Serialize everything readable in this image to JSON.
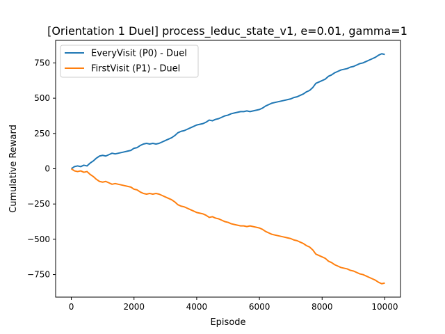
{
  "chart_data": {
    "type": "line",
    "title": "[Orientation 1 Duel] process_leduc_state_v1, e=0.01, gamma=1",
    "xlabel": "Episode",
    "ylabel": "Cumulative Reward",
    "xlim": [
      -500,
      10500
    ],
    "ylim": [
      -910,
      910
    ],
    "xticks": [
      0,
      2000,
      4000,
      6000,
      8000,
      10000
    ],
    "yticks": [
      -750,
      -500,
      -250,
      0,
      250,
      500,
      750
    ],
    "grid": false,
    "legend_position": "top-left",
    "series": [
      {
        "name": "EveryVisit (P0) - Duel",
        "color": "#1f77b4",
        "points": [
          [
            0,
            0
          ],
          [
            100,
            15
          ],
          [
            200,
            20
          ],
          [
            300,
            15
          ],
          [
            400,
            25
          ],
          [
            500,
            20
          ],
          [
            600,
            40
          ],
          [
            700,
            55
          ],
          [
            800,
            75
          ],
          [
            900,
            90
          ],
          [
            1000,
            95
          ],
          [
            1100,
            90
          ],
          [
            1200,
            100
          ],
          [
            1300,
            110
          ],
          [
            1400,
            105
          ],
          [
            1500,
            110
          ],
          [
            1600,
            115
          ],
          [
            1700,
            120
          ],
          [
            1800,
            125
          ],
          [
            1900,
            130
          ],
          [
            2000,
            145
          ],
          [
            2100,
            150
          ],
          [
            2200,
            165
          ],
          [
            2300,
            175
          ],
          [
            2400,
            180
          ],
          [
            2500,
            175
          ],
          [
            2600,
            180
          ],
          [
            2700,
            175
          ],
          [
            2800,
            180
          ],
          [
            2900,
            190
          ],
          [
            3000,
            200
          ],
          [
            3100,
            210
          ],
          [
            3200,
            220
          ],
          [
            3300,
            235
          ],
          [
            3400,
            255
          ],
          [
            3500,
            265
          ],
          [
            3600,
            270
          ],
          [
            3700,
            280
          ],
          [
            3800,
            290
          ],
          [
            3900,
            300
          ],
          [
            4000,
            310
          ],
          [
            4100,
            315
          ],
          [
            4200,
            320
          ],
          [
            4300,
            330
          ],
          [
            4400,
            345
          ],
          [
            4500,
            340
          ],
          [
            4600,
            350
          ],
          [
            4700,
            355
          ],
          [
            4800,
            365
          ],
          [
            4900,
            375
          ],
          [
            5000,
            380
          ],
          [
            5100,
            390
          ],
          [
            5200,
            395
          ],
          [
            5300,
            400
          ],
          [
            5400,
            405
          ],
          [
            5500,
            405
          ],
          [
            5600,
            410
          ],
          [
            5700,
            405
          ],
          [
            5800,
            410
          ],
          [
            5900,
            415
          ],
          [
            6000,
            420
          ],
          [
            6100,
            430
          ],
          [
            6200,
            445
          ],
          [
            6300,
            455
          ],
          [
            6400,
            465
          ],
          [
            6500,
            470
          ],
          [
            6600,
            475
          ],
          [
            6700,
            480
          ],
          [
            6800,
            485
          ],
          [
            6900,
            490
          ],
          [
            7000,
            495
          ],
          [
            7100,
            505
          ],
          [
            7200,
            510
          ],
          [
            7300,
            520
          ],
          [
            7400,
            530
          ],
          [
            7500,
            545
          ],
          [
            7600,
            555
          ],
          [
            7700,
            575
          ],
          [
            7800,
            605
          ],
          [
            7900,
            615
          ],
          [
            8000,
            625
          ],
          [
            8100,
            635
          ],
          [
            8200,
            655
          ],
          [
            8300,
            665
          ],
          [
            8400,
            680
          ],
          [
            8500,
            690
          ],
          [
            8600,
            700
          ],
          [
            8700,
            705
          ],
          [
            8800,
            710
          ],
          [
            8900,
            720
          ],
          [
            9000,
            725
          ],
          [
            9100,
            735
          ],
          [
            9200,
            745
          ],
          [
            9300,
            750
          ],
          [
            9400,
            760
          ],
          [
            9500,
            770
          ],
          [
            9600,
            780
          ],
          [
            9700,
            790
          ],
          [
            9800,
            805
          ],
          [
            9900,
            815
          ],
          [
            10000,
            810
          ]
        ]
      },
      {
        "name": "FirstVisit (P1) - Duel",
        "color": "#ff7f0e",
        "points": [
          [
            0,
            0
          ],
          [
            100,
            -15
          ],
          [
            200,
            -20
          ],
          [
            300,
            -15
          ],
          [
            400,
            -25
          ],
          [
            500,
            -20
          ],
          [
            600,
            -40
          ],
          [
            700,
            -55
          ],
          [
            800,
            -75
          ],
          [
            900,
            -90
          ],
          [
            1000,
            -95
          ],
          [
            1100,
            -90
          ],
          [
            1200,
            -100
          ],
          [
            1300,
            -110
          ],
          [
            1400,
            -105
          ],
          [
            1500,
            -110
          ],
          [
            1600,
            -115
          ],
          [
            1700,
            -120
          ],
          [
            1800,
            -125
          ],
          [
            1900,
            -130
          ],
          [
            2000,
            -145
          ],
          [
            2100,
            -150
          ],
          [
            2200,
            -165
          ],
          [
            2300,
            -175
          ],
          [
            2400,
            -180
          ],
          [
            2500,
            -175
          ],
          [
            2600,
            -180
          ],
          [
            2700,
            -175
          ],
          [
            2800,
            -180
          ],
          [
            2900,
            -190
          ],
          [
            3000,
            -200
          ],
          [
            3100,
            -210
          ],
          [
            3200,
            -220
          ],
          [
            3300,
            -235
          ],
          [
            3400,
            -255
          ],
          [
            3500,
            -265
          ],
          [
            3600,
            -270
          ],
          [
            3700,
            -280
          ],
          [
            3800,
            -290
          ],
          [
            3900,
            -300
          ],
          [
            4000,
            -310
          ],
          [
            4100,
            -315
          ],
          [
            4200,
            -320
          ],
          [
            4300,
            -330
          ],
          [
            4400,
            -345
          ],
          [
            4500,
            -340
          ],
          [
            4600,
            -350
          ],
          [
            4700,
            -355
          ],
          [
            4800,
            -365
          ],
          [
            4900,
            -375
          ],
          [
            5000,
            -380
          ],
          [
            5100,
            -390
          ],
          [
            5200,
            -395
          ],
          [
            5300,
            -400
          ],
          [
            5400,
            -405
          ],
          [
            5500,
            -405
          ],
          [
            5600,
            -410
          ],
          [
            5700,
            -405
          ],
          [
            5800,
            -410
          ],
          [
            5900,
            -415
          ],
          [
            6000,
            -420
          ],
          [
            6100,
            -430
          ],
          [
            6200,
            -445
          ],
          [
            6300,
            -455
          ],
          [
            6400,
            -465
          ],
          [
            6500,
            -470
          ],
          [
            6600,
            -475
          ],
          [
            6700,
            -480
          ],
          [
            6800,
            -485
          ],
          [
            6900,
            -490
          ],
          [
            7000,
            -495
          ],
          [
            7100,
            -505
          ],
          [
            7200,
            -510
          ],
          [
            7300,
            -520
          ],
          [
            7400,
            -530
          ],
          [
            7500,
            -545
          ],
          [
            7600,
            -555
          ],
          [
            7700,
            -575
          ],
          [
            7800,
            -605
          ],
          [
            7900,
            -615
          ],
          [
            8000,
            -625
          ],
          [
            8100,
            -635
          ],
          [
            8200,
            -655
          ],
          [
            8300,
            -665
          ],
          [
            8400,
            -680
          ],
          [
            8500,
            -690
          ],
          [
            8600,
            -700
          ],
          [
            8700,
            -705
          ],
          [
            8800,
            -710
          ],
          [
            8900,
            -720
          ],
          [
            9000,
            -725
          ],
          [
            9100,
            -735
          ],
          [
            9200,
            -745
          ],
          [
            9300,
            -750
          ],
          [
            9400,
            -760
          ],
          [
            9500,
            -770
          ],
          [
            9600,
            -780
          ],
          [
            9700,
            -790
          ],
          [
            9800,
            -805
          ],
          [
            9900,
            -815
          ],
          [
            10000,
            -810
          ]
        ]
      }
    ]
  }
}
